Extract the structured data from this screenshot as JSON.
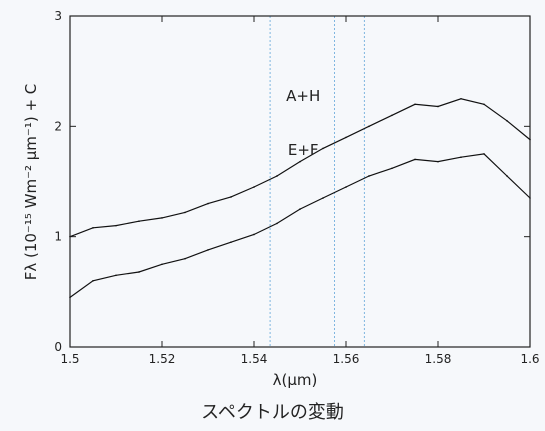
{
  "caption": "スペクトルの変動",
  "chart_data": {
    "type": "line",
    "title": "",
    "xlabel": "λ(μm)",
    "ylabel": "Fλ (10⁻¹⁵ Wm⁻² μm⁻¹) + C",
    "xlim": [
      1.5,
      1.6
    ],
    "ylim": [
      0,
      3
    ],
    "x_ticks": [
      "1.5",
      "1.52",
      "1.54",
      "1.56",
      "1.58",
      "1.6"
    ],
    "y_ticks": [
      "0",
      "1",
      "2",
      "3"
    ],
    "grid": false,
    "reference_lines_x": [
      1.5435,
      1.5575,
      1.564
    ],
    "series": [
      {
        "name": "A+H",
        "color": "#111111",
        "x": [
          1.5,
          1.505,
          1.51,
          1.515,
          1.52,
          1.525,
          1.53,
          1.535,
          1.54,
          1.545,
          1.55,
          1.555,
          1.56,
          1.565,
          1.57,
          1.575,
          1.58,
          1.585,
          1.59,
          1.595,
          1.6
        ],
        "y": [
          1.0,
          1.08,
          1.1,
          1.14,
          1.17,
          1.22,
          1.3,
          1.36,
          1.45,
          1.55,
          1.68,
          1.8,
          1.9,
          2.0,
          2.1,
          2.2,
          2.18,
          2.25,
          2.2,
          2.05,
          1.88
        ]
      },
      {
        "name": "E+F",
        "color": "#111111",
        "x": [
          1.5,
          1.505,
          1.51,
          1.515,
          1.52,
          1.525,
          1.53,
          1.535,
          1.54,
          1.545,
          1.55,
          1.555,
          1.56,
          1.565,
          1.57,
          1.575,
          1.58,
          1.585,
          1.59,
          1.595,
          1.6
        ],
        "y": [
          0.45,
          0.6,
          0.65,
          0.68,
          0.75,
          0.8,
          0.88,
          0.95,
          1.02,
          1.12,
          1.25,
          1.35,
          1.45,
          1.55,
          1.62,
          1.7,
          1.68,
          1.72,
          1.75,
          1.55,
          1.35
        ]
      }
    ]
  }
}
